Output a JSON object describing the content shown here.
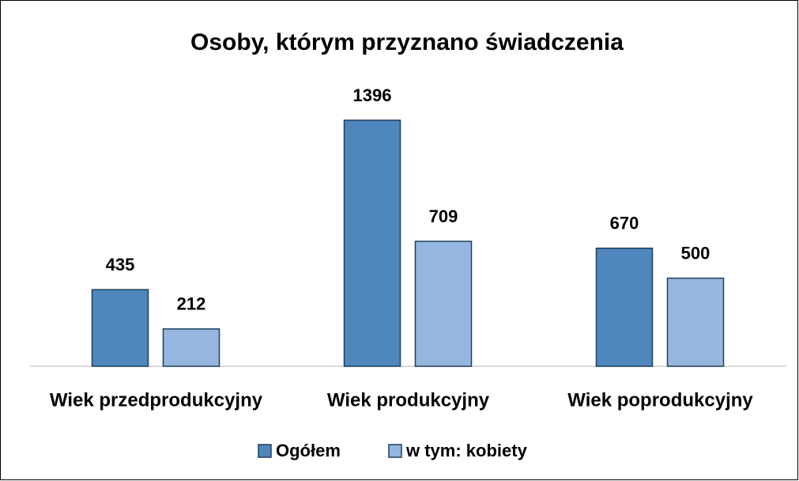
{
  "chart_data": {
    "type": "bar",
    "title": "Osoby, którym przyznano świadczenia",
    "categories": [
      "Wiek przedprodukcyjny",
      "Wiek produkcyjny",
      "Wiek poprodukcyjny"
    ],
    "series": [
      {
        "name": "Ogółem",
        "color": "#4f87bc",
        "values": [
          435,
          1396,
          670
        ]
      },
      {
        "name": "w tym: kobiety",
        "color": "#95b7df",
        "values": [
          212,
          709,
          500
        ]
      }
    ],
    "legend": "bottom"
  }
}
